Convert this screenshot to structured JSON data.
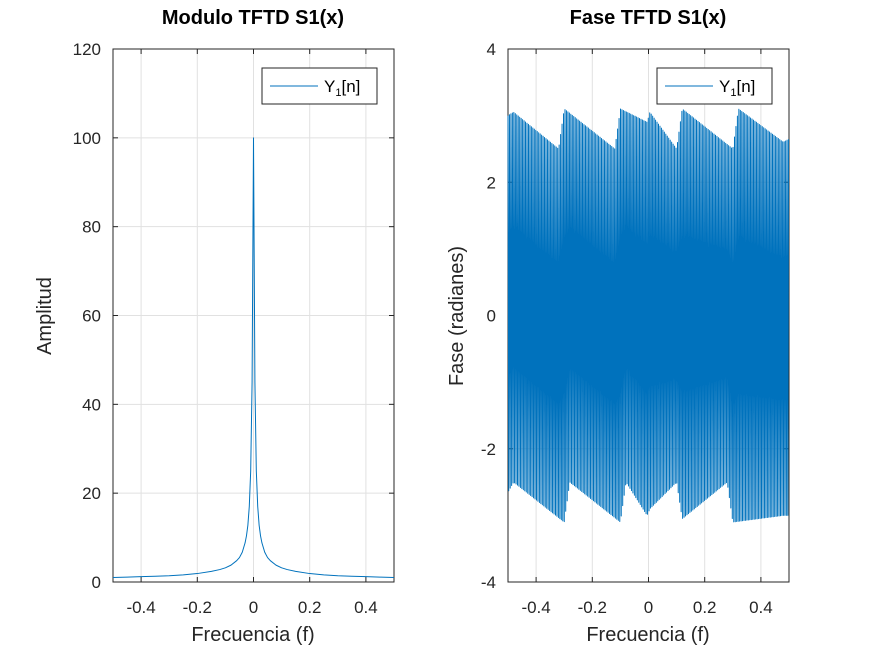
{
  "chart_data": [
    {
      "type": "line",
      "title": "Modulo TFTD S1(x)",
      "xlabel": "Frecuencia (f)",
      "ylabel": "Amplitud",
      "xlim": [
        -0.5,
        0.5
      ],
      "ylim": [
        0,
        120
      ],
      "xticks": [
        -0.4,
        -0.2,
        0,
        0.2,
        0.4
      ],
      "xtick_labels": [
        "-0.4",
        "-0.2",
        "0",
        "0.2",
        "0.4"
      ],
      "yticks": [
        0,
        20,
        40,
        60,
        80,
        100,
        120
      ],
      "ytick_labels": [
        "0",
        "20",
        "40",
        "60",
        "80",
        "100",
        "120"
      ],
      "grid": true,
      "legend_position": "top-right",
      "series": [
        {
          "name_main": "Y",
          "name_sub": "1",
          "name_tail": "[n]",
          "color": "#0072bd",
          "x": [
            -0.5,
            -0.45,
            -0.4,
            -0.35,
            -0.3,
            -0.25,
            -0.2,
            -0.15,
            -0.12,
            -0.1,
            -0.08,
            -0.06,
            -0.05,
            -0.04,
            -0.03,
            -0.025,
            -0.02,
            -0.015,
            -0.01,
            -0.005,
            0,
            0.005,
            0.01,
            0.015,
            0.02,
            0.025,
            0.03,
            0.04,
            0.05,
            0.06,
            0.08,
            0.1,
            0.12,
            0.15,
            0.2,
            0.25,
            0.3,
            0.35,
            0.4,
            0.45,
            0.5
          ],
          "y": [
            1.0,
            1.1,
            1.2,
            1.3,
            1.4,
            1.6,
            1.9,
            2.4,
            2.8,
            3.2,
            3.8,
            4.8,
            5.5,
            6.7,
            8.8,
            10.4,
            12.8,
            17.0,
            25.0,
            45.0,
            100.0,
            45.0,
            25.0,
            17.0,
            12.8,
            10.4,
            8.8,
            6.7,
            5.5,
            4.8,
            3.8,
            3.2,
            2.8,
            2.4,
            1.9,
            1.6,
            1.4,
            1.3,
            1.2,
            1.1,
            1.0
          ]
        }
      ]
    },
    {
      "type": "line",
      "title": "Fase TFTD S1(x)",
      "xlabel": "Frecuencia (f)",
      "ylabel": "Fase (radianes)",
      "xlim": [
        -0.5,
        0.5
      ],
      "ylim": [
        -4,
        4
      ],
      "xticks": [
        -0.4,
        -0.2,
        0,
        0.2,
        0.4
      ],
      "xtick_labels": [
        "-0.4",
        "-0.2",
        "0",
        "0.2",
        "0.4"
      ],
      "yticks": [
        -4,
        -2,
        0,
        2,
        4
      ],
      "ytick_labels": [
        "-4",
        "-2",
        "0",
        "2",
        "4"
      ],
      "grid": true,
      "legend_position": "top-right",
      "oscillation": {
        "description_free": true,
        "period_f": 0.0052,
        "upper_envelope": [
          [
            -0.5,
            3.0
          ],
          [
            -0.48,
            3.05
          ],
          [
            -0.32,
            2.5
          ],
          [
            -0.3,
            3.1
          ],
          [
            -0.12,
            2.5
          ],
          [
            -0.1,
            3.1
          ],
          [
            -0.005,
            2.9
          ],
          [
            0.005,
            3.05
          ],
          [
            0.1,
            2.5
          ],
          [
            0.12,
            3.1
          ],
          [
            0.3,
            2.5
          ],
          [
            0.32,
            3.1
          ],
          [
            0.48,
            2.6
          ],
          [
            0.5,
            2.65
          ]
        ],
        "lower_envelope": [
          [
            -0.5,
            -2.65
          ],
          [
            -0.48,
            -2.5
          ],
          [
            -0.3,
            -3.1
          ],
          [
            -0.28,
            -2.5
          ],
          [
            -0.1,
            -3.1
          ],
          [
            -0.08,
            -2.5
          ],
          [
            -0.005,
            -3.0
          ],
          [
            0.005,
            -2.9
          ],
          [
            0.1,
            -2.5
          ],
          [
            0.12,
            -3.05
          ],
          [
            0.28,
            -2.5
          ],
          [
            0.3,
            -3.1
          ],
          [
            0.48,
            -3.0
          ],
          [
            0.5,
            -3.0
          ]
        ]
      },
      "series": [
        {
          "name_main": "Y",
          "name_sub": "1",
          "name_tail": "[n]",
          "color": "#0072bd"
        }
      ]
    }
  ]
}
